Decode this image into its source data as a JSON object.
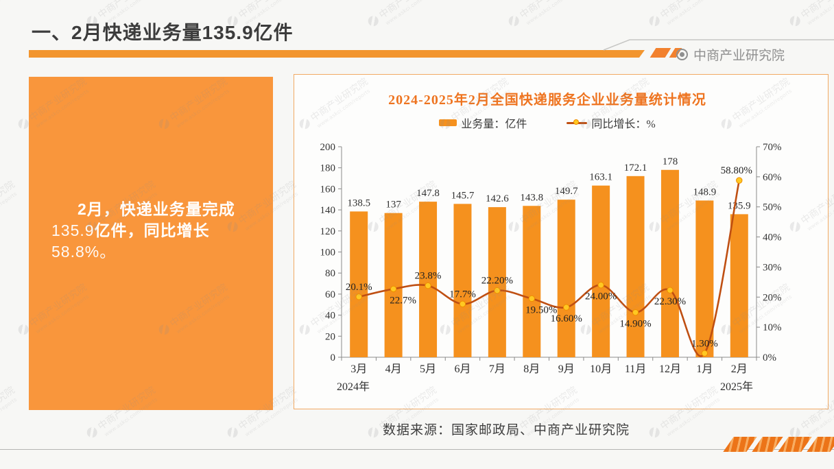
{
  "header": {
    "section_title": "一、2月快递业务量135.9亿件",
    "brand": "中商产业研究院"
  },
  "summary_panel": {
    "lines": [
      {
        "indent": true,
        "segments": [
          {
            "text": "2月，快递业务量完成",
            "bold": true
          }
        ]
      },
      {
        "indent": false,
        "segments": [
          {
            "text": "135.9",
            "bold": false
          },
          {
            "text": "亿件，同比增长",
            "bold": true
          },
          {
            "text": "58.8%。",
            "bold": false
          }
        ]
      }
    ]
  },
  "chart_data": {
    "type": "bar+line",
    "title": "2024-2025年2月全国快递服务企业业务量统计情况",
    "categories": [
      "3月",
      "4月",
      "5月",
      "6月",
      "7月",
      "8月",
      "9月",
      "10月",
      "11月",
      "12月",
      "1月",
      "2月"
    ],
    "year_left": "2024年",
    "year_right": "2025年",
    "series": [
      {
        "name": "业务量：亿件",
        "type": "bar",
        "axis": "left",
        "color": "#f5911e",
        "values": [
          138.5,
          137,
          147.8,
          145.7,
          142.6,
          143.8,
          149.7,
          163.1,
          172.1,
          178,
          148.9,
          135.9
        ],
        "labels": [
          "138.5",
          "137",
          "147.8",
          "145.7",
          "142.6",
          "143.8",
          "149.7",
          "163.1",
          "172.1",
          "178",
          "148.9",
          "135.9"
        ]
      },
      {
        "name": "同比增长：%",
        "type": "line",
        "axis": "right",
        "color": "#bf4f12",
        "marker_fill": "#ffc822",
        "marker_stroke": "#ee8d00",
        "values": [
          20.1,
          22.7,
          23.8,
          17.7,
          22.2,
          19.5,
          16.6,
          24.0,
          14.9,
          22.3,
          1.3,
          58.8
        ],
        "labels": [
          "20.1%",
          "22.7%",
          "23.8%",
          "17.7%",
          "22.20%",
          "19.50%",
          "16.60%",
          "24.00%",
          "14.90%",
          "22.30%",
          "1.30%",
          "58.80%"
        ],
        "label_side": [
          "above",
          "below",
          "above",
          "above",
          "above",
          "below",
          "below",
          "below",
          "below",
          "below",
          "above",
          "above"
        ],
        "label_dx": [
          0,
          14,
          0,
          0,
          0,
          14,
          0,
          0,
          0,
          0,
          0,
          -4
        ]
      }
    ],
    "left_axis": {
      "min": 0,
      "max": 200,
      "step": 20
    },
    "right_axis": {
      "min": 0,
      "max": 70,
      "step": 10,
      "suffix": "%"
    },
    "grid": false,
    "legend_position": "top"
  },
  "footer": {
    "source": "数据来源：国家邮政局、中商产业研究院"
  },
  "watermark": {
    "line1": "中商产业研究院",
    "line2": "www.askci.com/reports"
  },
  "colors": {
    "accent_orange": "#f5911e",
    "panel_orange": "#f9963c",
    "divider_orange": "#f2952e",
    "line_red": "#bf4f12",
    "title_orange": "#ee7420",
    "brand_gray": "#8f8f8f"
  }
}
